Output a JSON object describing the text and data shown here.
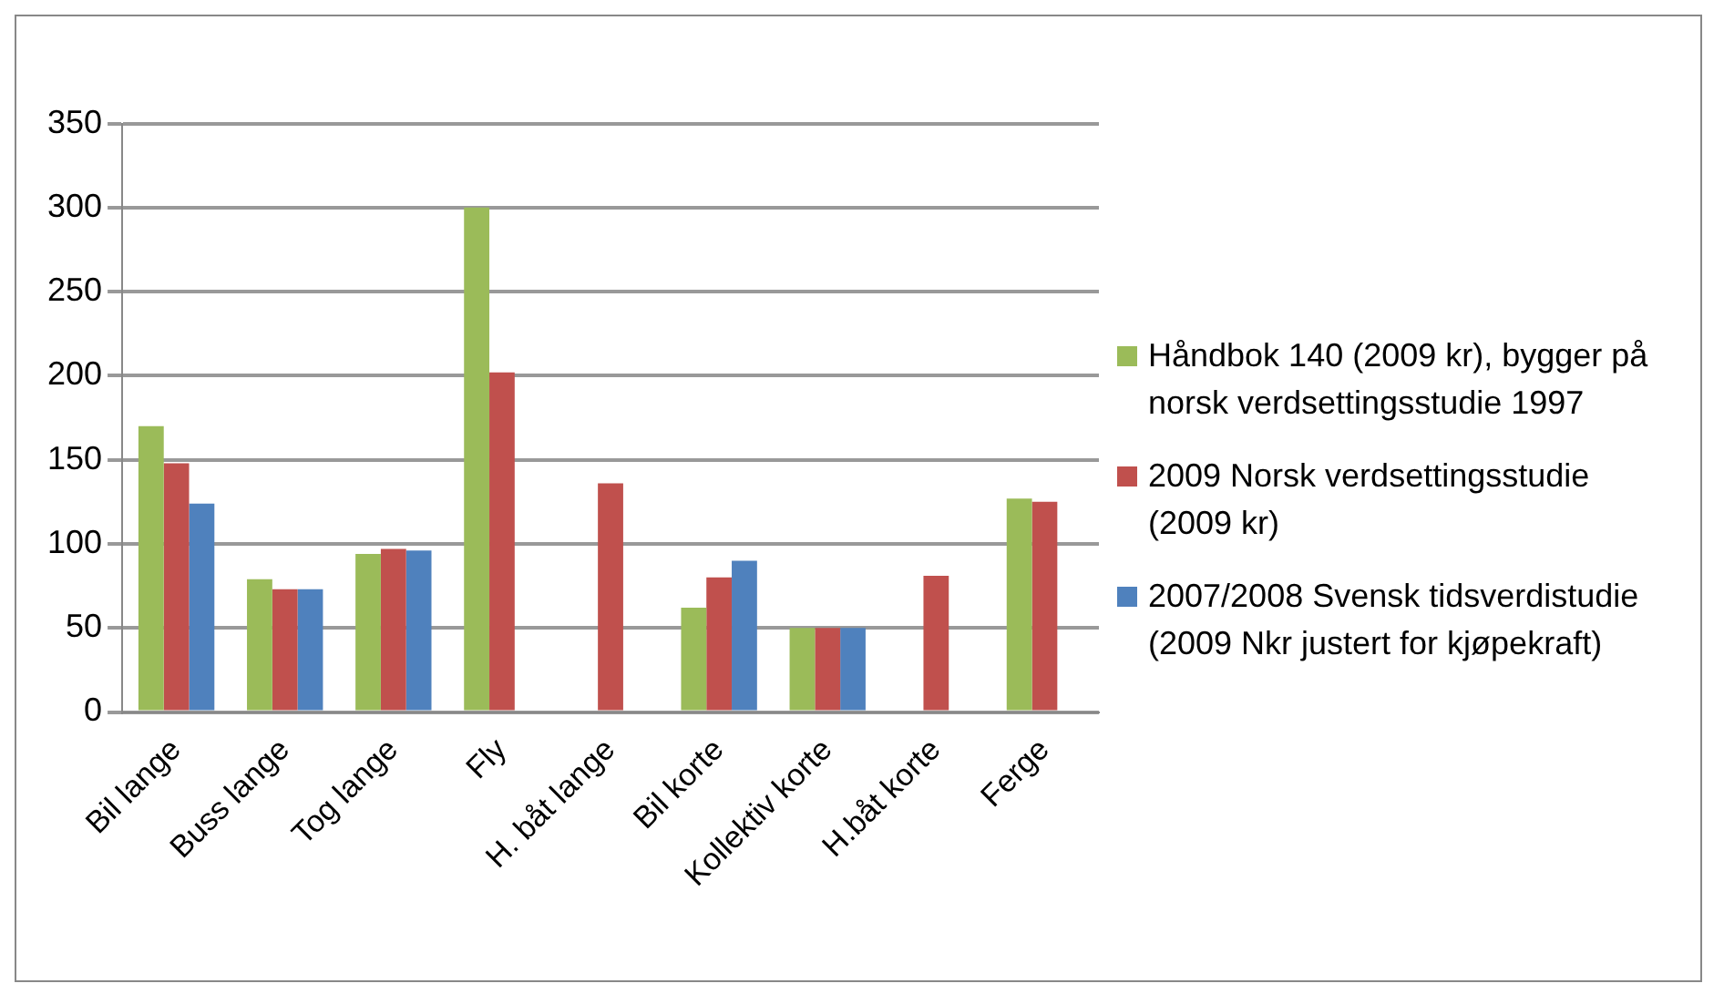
{
  "chart_data": {
    "type": "bar",
    "categories": [
      "Bil lange",
      "Buss lange",
      "Tog lange",
      "Fly",
      "H. båt lange",
      "Bil korte",
      "Kollektiv korte",
      "H.båt korte",
      "Ferge"
    ],
    "series": [
      {
        "name": "Håndbok 140 (2009 kr), bygger på norsk verdsettingsstudie 1997",
        "color": "#9bbb59",
        "values": [
          170,
          79,
          94,
          300,
          null,
          62,
          50,
          null,
          127
        ]
      },
      {
        "name": " 2009 Norsk verdsettingsstudie (2009 kr)",
        "color": "#c0504d",
        "values": [
          148,
          73,
          97,
          202,
          136,
          80,
          50,
          81,
          125
        ]
      },
      {
        "name": "2007/2008 Svensk tidsverdistudie (2009 Nkr justert for kjøpekraft)",
        "color": "#4f81bd",
        "values": [
          124,
          73,
          96,
          null,
          null,
          90,
          50,
          null,
          null
        ]
      }
    ],
    "ylim": [
      0,
      350
    ],
    "yticks": [
      0,
      50,
      100,
      150,
      200,
      250,
      300,
      350
    ],
    "grid": "y",
    "legend": "right"
  }
}
